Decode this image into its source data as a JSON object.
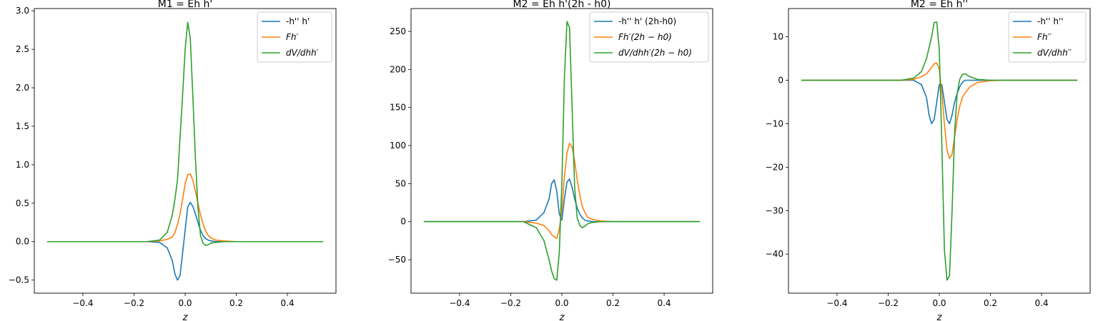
{
  "colors": {
    "series1": "#1f77b4",
    "series2": "#ff7f0e",
    "series3": "#2ca02c"
  },
  "chart_data": [
    {
      "type": "line",
      "title": "M1 = Eh h'",
      "xlabel": "z",
      "ylabel": "",
      "xlim": [
        -0.59,
        0.59
      ],
      "ylim": [
        -0.67,
        3.03
      ],
      "xticks": [
        -0.4,
        -0.2,
        0.0,
        0.2,
        0.4
      ],
      "xtick_labels": [
        "−0.4",
        "−0.2",
        "0.0",
        "0.2",
        "0.4"
      ],
      "yticks": [
        -0.5,
        0.0,
        0.5,
        1.0,
        1.5,
        2.0,
        2.5,
        3.0
      ],
      "ytick_labels": [
        "−0.5",
        "0.0",
        "0.5",
        "1.0",
        "1.5",
        "2.0",
        "2.5",
        "3.0"
      ],
      "legend": "top-right",
      "x": [
        -0.54,
        -0.15,
        -0.1,
        -0.07,
        -0.05,
        -0.04,
        -0.03,
        -0.02,
        -0.01,
        0.0,
        0.01,
        0.02,
        0.03,
        0.04,
        0.05,
        0.06,
        0.07,
        0.08,
        0.09,
        0.1,
        0.12,
        0.15,
        0.2,
        0.25,
        0.54
      ],
      "series": [
        {
          "name": "-h'' h'",
          "values": [
            0,
            0,
            -0.01,
            -0.08,
            -0.25,
            -0.42,
            -0.5,
            -0.44,
            -0.15,
            0.15,
            0.45,
            0.51,
            0.46,
            0.36,
            0.25,
            0.15,
            0.08,
            0.04,
            0.02,
            0.01,
            0,
            0,
            0,
            0,
            0
          ]
        },
        {
          "name": "Fh′",
          "values": [
            0,
            0,
            0.01,
            0.03,
            0.06,
            0.12,
            0.22,
            0.36,
            0.55,
            0.75,
            0.87,
            0.88,
            0.8,
            0.66,
            0.5,
            0.35,
            0.23,
            0.14,
            0.08,
            0.05,
            0.02,
            0.01,
            0,
            0,
            0
          ]
        },
        {
          "name": "dV/dhh′",
          "values": [
            0,
            0,
            0.02,
            0.12,
            0.35,
            0.55,
            0.8,
            1.35,
            1.9,
            2.5,
            2.85,
            2.65,
            1.9,
            1.1,
            0.45,
            0.08,
            -0.02,
            -0.05,
            -0.04,
            -0.02,
            -0.01,
            0,
            0,
            0,
            0
          ]
        }
      ]
    },
    {
      "type": "line",
      "title": "M2 = Eh h'(2h - h0)",
      "xlabel": "z",
      "ylabel": "",
      "xlim": [
        -0.59,
        0.59
      ],
      "ylim": [
        -94,
        280
      ],
      "xticks": [
        -0.4,
        -0.2,
        0.0,
        0.2,
        0.4
      ],
      "xtick_labels": [
        "−0.4",
        "−0.2",
        "0.0",
        "0.2",
        "0.4"
      ],
      "yticks": [
        -50,
        0,
        50,
        100,
        150,
        200,
        250
      ],
      "ytick_labels": [
        "−50",
        "0",
        "50",
        "100",
        "150",
        "200",
        "250"
      ],
      "legend": "top-right",
      "x": [
        -0.54,
        -0.15,
        -0.1,
        -0.07,
        -0.05,
        -0.04,
        -0.03,
        -0.02,
        -0.01,
        0.0,
        0.01,
        0.02,
        0.03,
        0.04,
        0.05,
        0.06,
        0.07,
        0.08,
        0.09,
        0.1,
        0.12,
        0.15,
        0.2,
        0.25,
        0.54
      ],
      "series": [
        {
          "name": "-h'' h' (2h-h0)",
          "values": [
            0,
            0,
            2,
            12,
            30,
            50,
            55,
            40,
            10,
            2,
            30,
            52,
            56,
            45,
            30,
            18,
            10,
            5,
            2,
            1,
            0,
            0,
            0,
            0,
            0
          ]
        },
        {
          "name": "Fh′(2h − h0)",
          "values": [
            0,
            0,
            -2,
            -5,
            -12,
            -17,
            -20,
            -22,
            -10,
            15,
            60,
            90,
            103,
            98,
            80,
            55,
            35,
            20,
            12,
            6,
            3,
            1,
            0,
            0,
            0
          ]
        },
        {
          "name": "dV/dhh′(2h − h0)",
          "values": [
            0,
            0,
            -8,
            -25,
            -50,
            -65,
            -75,
            -77,
            -40,
            50,
            190,
            263,
            255,
            150,
            45,
            5,
            -5,
            -8,
            -6,
            -3,
            -1,
            0,
            0,
            0,
            0
          ]
        }
      ]
    },
    {
      "type": "line",
      "title": "M2 = Eh h''",
      "xlabel": "z",
      "ylabel": "",
      "xlim": [
        -0.59,
        0.59
      ],
      "ylim": [
        -49,
        16.5
      ],
      "xticks": [
        -0.4,
        -0.2,
        0.0,
        0.2,
        0.4
      ],
      "xtick_labels": [
        "−0.4",
        "−0.2",
        "0.0",
        "0.2",
        "0.4"
      ],
      "yticks": [
        -40,
        -30,
        -20,
        -10,
        0,
        10
      ],
      "ytick_labels": [
        "−40",
        "−30",
        "−20",
        "−10",
        "0",
        "10"
      ],
      "legend": "top-right",
      "x": [
        -0.54,
        -0.15,
        -0.1,
        -0.07,
        -0.05,
        -0.04,
        -0.03,
        -0.02,
        -0.01,
        0.0,
        0.01,
        0.02,
        0.03,
        0.04,
        0.05,
        0.06,
        0.07,
        0.08,
        0.09,
        0.1,
        0.12,
        0.15,
        0.2,
        0.25,
        0.54
      ],
      "series": [
        {
          "name": "-h'' h''",
          "values": [
            0,
            0,
            0,
            -1,
            -4,
            -8,
            -10,
            -9,
            -5,
            -1,
            -1,
            -5,
            -9,
            -10,
            -8,
            -5,
            -3,
            -1.5,
            -0.5,
            0,
            0,
            0,
            0,
            0,
            0
          ]
        },
        {
          "name": "Fh′′",
          "values": [
            0,
            0,
            0.2,
            0.8,
            1.5,
            2.2,
            3,
            3.8,
            4,
            2.5,
            -3,
            -10,
            -16,
            -18,
            -17,
            -13,
            -9,
            -6,
            -4,
            -3,
            -1.5,
            -0.5,
            -0.1,
            0,
            0
          ]
        },
        {
          "name": "dV/dhh′′",
          "values": [
            0,
            0,
            0.5,
            2,
            5,
            7.5,
            10,
            13.3,
            13.4,
            7,
            -15,
            -39,
            -46,
            -45,
            -30,
            -12,
            -3,
            0.2,
            1.3,
            1.5,
            0.8,
            0.2,
            0,
            0,
            0
          ]
        }
      ]
    }
  ]
}
